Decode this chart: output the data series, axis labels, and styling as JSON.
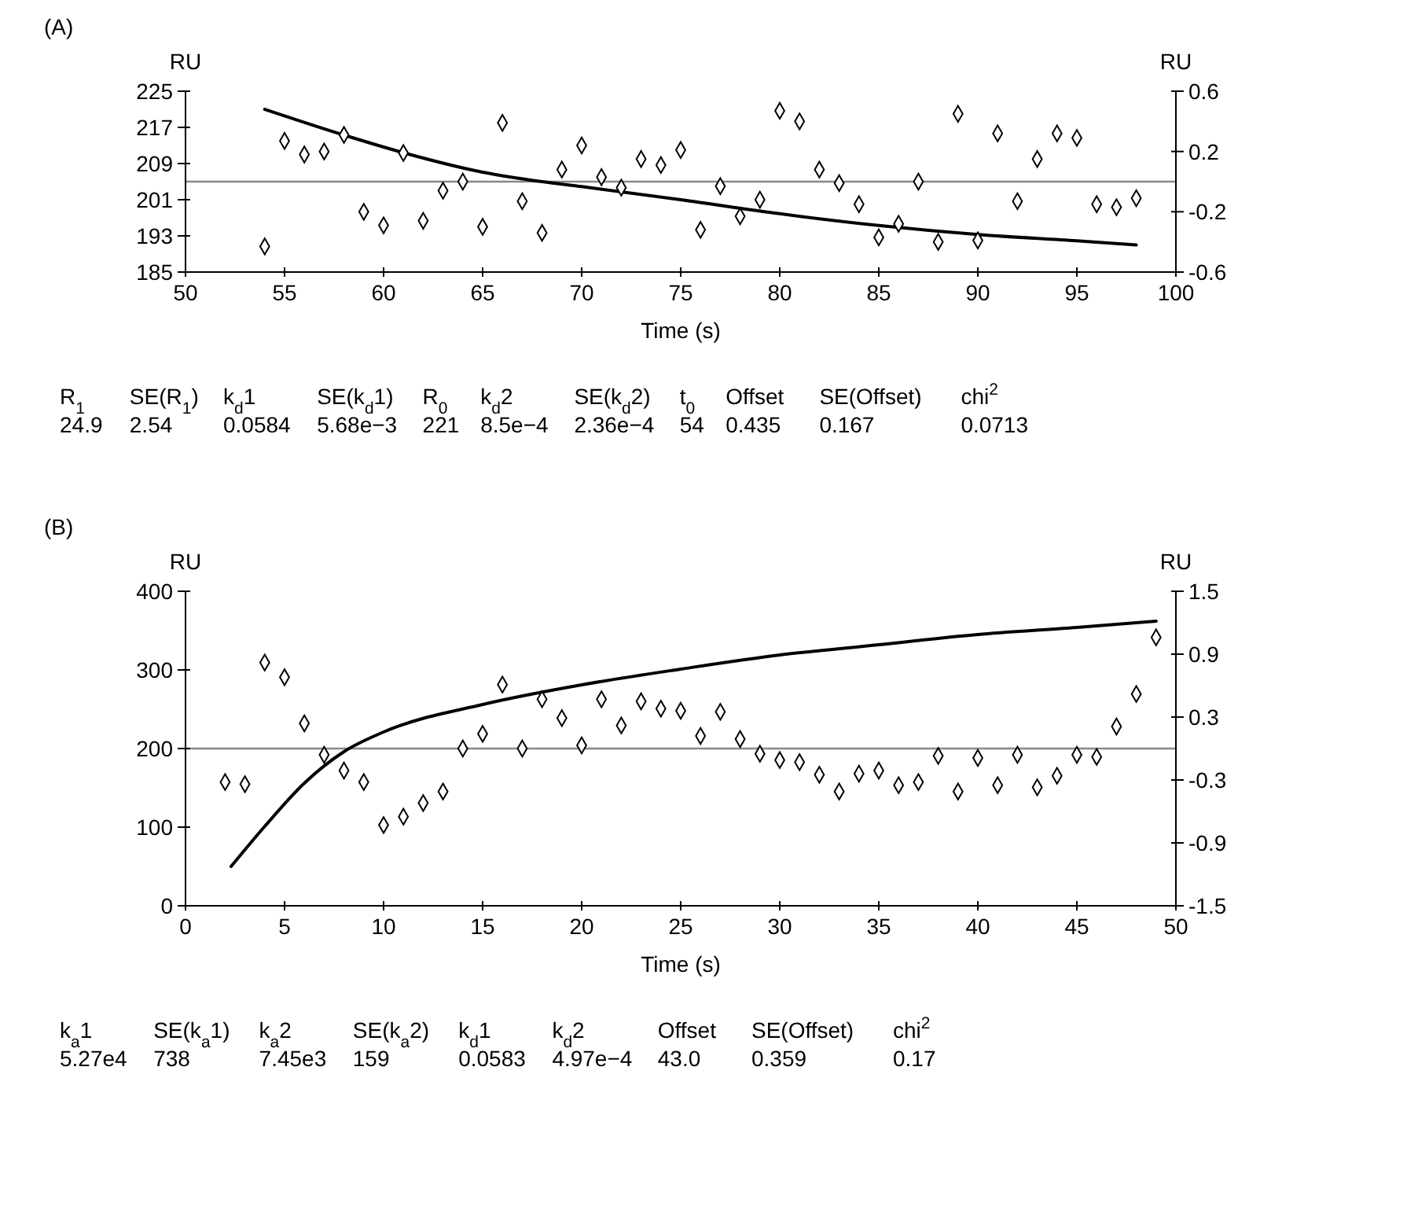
{
  "chart_data": [
    {
      "type": "line",
      "title": "(A)",
      "xlabel": "Time (s)",
      "ylabel": "RU",
      "y2label": "RU",
      "grid": false,
      "xlim": [
        50,
        100
      ],
      "xticks": [
        50,
        55,
        60,
        65,
        70,
        75,
        80,
        85,
        90,
        95,
        100
      ],
      "ylim": [
        185,
        225
      ],
      "yticks": [
        185,
        193,
        201,
        209,
        217,
        225
      ],
      "y2lim": [
        -0.6,
        0.6
      ],
      "y2ticks": [
        {
          "value": -0.6,
          "label": "-0.6"
        },
        {
          "value": -0.2,
          "label": "-0.2"
        },
        0.2,
        0.6
      ],
      "ref_lines": [
        {
          "axis": "y2",
          "value": 0,
          "color": "#888888"
        }
      ],
      "series": [
        {
          "color": "#000000",
          "axis": "y",
          "line_style": "solid",
          "x": [
            54,
            58,
            61,
            65,
            68,
            70,
            75,
            80,
            85,
            90,
            95,
            98
          ],
          "values": [
            221,
            215.3,
            211.4,
            207.1,
            205,
            203.9,
            201,
            197.9,
            195.3,
            193.3,
            191.9,
            191
          ]
        },
        {
          "type": "scatter",
          "color": "#000000",
          "axis": "y2",
          "marker": "diamond",
          "x": [
            54,
            55,
            56,
            57,
            58,
            59,
            60,
            61,
            62,
            63,
            64,
            65,
            66,
            67,
            68,
            69,
            70,
            71,
            72,
            73,
            74,
            75,
            76,
            77,
            78,
            79,
            80,
            81,
            82,
            83,
            84,
            85,
            86,
            87,
            88,
            89,
            90,
            91,
            92,
            93,
            94,
            95,
            96,
            97,
            98
          ],
          "values": [
            -0.43,
            0.27,
            0.18,
            0.2,
            0.31,
            -0.2,
            -0.29,
            0.19,
            -0.26,
            -0.06,
            0,
            -0.3,
            0.39,
            -0.13,
            -0.34,
            0.08,
            0.24,
            0.03,
            -0.04,
            0.15,
            0.11,
            0.21,
            -0.32,
            -0.03,
            -0.23,
            -0.12,
            0.47,
            0.4,
            0.08,
            -0.01,
            -0.15,
            -0.37,
            -0.28,
            0,
            -0.4,
            0.45,
            -0.39,
            0.32,
            -0.13,
            0.15,
            0.32,
            0.29,
            -0.15,
            -0.17,
            -0.11
          ]
        }
      ],
      "annotations": [
        "R$_{1}$",
        "24.9",
        "SE(R$_{1}$)",
        "2.54",
        "k$_{d}$1",
        "0.0584",
        "SE(k$_{d}$1)",
        "5.68e−3",
        "R$_{0}$",
        "221",
        "k$_{d}$2",
        "8.5e−4",
        "SE(k$_{d}$2)",
        "2.36e−4",
        "t$_{0}$",
        "54",
        "Offset",
        "0.435",
        "SE(Offset)",
        "0.167",
        "chi$^{2}$",
        "0.0713"
      ]
    },
    {
      "type": "line",
      "title": "(B)",
      "xlabel": "Time (s)",
      "ylabel": "RU",
      "y2label": "RU",
      "grid": false,
      "xlim": [
        0,
        50
      ],
      "xticks": [
        0,
        5,
        10,
        15,
        20,
        25,
        30,
        35,
        40,
        45,
        50
      ],
      "ylim": [
        0,
        400
      ],
      "yticks": [
        0,
        100,
        200,
        300,
        400
      ],
      "y2lim": [
        -1.5,
        1.5
      ],
      "y2ticks": [
        {
          "value": -1.5,
          "label": "-1.5"
        },
        {
          "value": -0.9,
          "label": "-0.9"
        },
        {
          "value": -0.3,
          "label": "-0.3"
        },
        0.3,
        0.9,
        1.5
      ],
      "ref_lines": [
        {
          "axis": "y2",
          "value": 0,
          "color": "#888888"
        }
      ],
      "series": [
        {
          "color": "#000000",
          "axis": "y",
          "line_style": "solid",
          "x": [
            2.3,
            4,
            6,
            8,
            10,
            15,
            20,
            25,
            30,
            35,
            40,
            45,
            49
          ],
          "values": [
            50,
            101,
            156,
            196,
            221,
            256,
            281,
            301,
            319,
            332,
            345,
            354,
            362
          ]
        },
        {
          "type": "scatter",
          "color": "#000000",
          "axis": "y2",
          "marker": "diamond",
          "x": [
            2,
            3,
            4,
            5,
            6,
            7,
            8,
            9,
            10,
            11,
            12,
            13,
            14,
            15,
            16,
            17,
            18,
            19,
            20,
            21,
            22,
            23,
            24,
            25,
            26,
            27,
            28,
            29,
            30,
            31,
            32,
            33,
            34,
            35,
            36,
            37,
            38,
            39,
            40,
            41,
            42,
            43,
            44,
            45,
            46,
            47,
            48,
            49
          ],
          "values": [
            -0.32,
            -0.34,
            0.82,
            0.68,
            0.24,
            -0.06,
            -0.21,
            -0.32,
            -0.73,
            -0.65,
            -0.52,
            -0.41,
            0,
            0.14,
            0.61,
            0,
            0.47,
            0.29,
            0.03,
            0.47,
            0.22,
            0.45,
            0.38,
            0.36,
            0.12,
            0.35,
            0.09,
            -0.05,
            -0.11,
            -0.13,
            -0.25,
            -0.41,
            -0.24,
            -0.21,
            -0.35,
            -0.32,
            -0.07,
            -0.41,
            -0.09,
            -0.35,
            -0.06,
            -0.37,
            -0.26,
            -0.06,
            -0.08,
            0.21,
            0.52,
            1.06
          ]
        }
      ],
      "annotations": [
        "k$_{a}$1",
        "5.27e4",
        "SE(k$_{a}$1)",
        "738",
        "k$_{a}$2",
        "7.45e3",
        "SE(k$_{a}$2)",
        "159",
        "k$_{d}$1",
        "0.0583",
        "k$_{d}$2",
        "4.97e−4",
        "Offset",
        "43.0",
        "SE(Offset)",
        "0.359",
        "chi$^{2}$",
        "0.17"
      ]
    }
  ]
}
